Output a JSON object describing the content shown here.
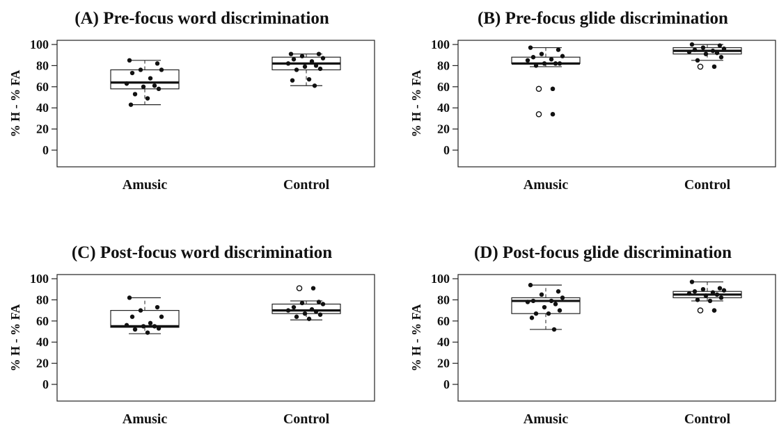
{
  "chart_data": [
    {
      "type": "boxplot",
      "title": "(A) Pre-focus word discrimination",
      "ylabel": "% H - % FA",
      "ylim": [
        -10,
        105
      ],
      "yticks": [
        0,
        20,
        40,
        60,
        80,
        100
      ],
      "categories": [
        "Amusic",
        "Control"
      ],
      "boxes": [
        {
          "q1": 58,
          "median": 64,
          "q3": 76,
          "whisker_low": 43,
          "whisker_high": 85,
          "outliers": [],
          "points": [
            85,
            82,
            76,
            76,
            73,
            68,
            63,
            61,
            60,
            58,
            53,
            49,
            43
          ]
        },
        {
          "q1": 76,
          "median": 82,
          "q3": 88,
          "whisker_low": 61,
          "whisker_high": 91,
          "outliers": [],
          "points": [
            91,
            91,
            89,
            87,
            86,
            84,
            82,
            80,
            79,
            77,
            76,
            67,
            66,
            61
          ]
        }
      ]
    },
    {
      "type": "boxplot",
      "title": "(B) Pre-focus glide discrimination",
      "ylabel": "% H - % FA",
      "ylim": [
        -10,
        105
      ],
      "yticks": [
        0,
        20,
        40,
        60,
        80,
        100
      ],
      "categories": [
        "Amusic",
        "Control"
      ],
      "boxes": [
        {
          "q1": 82,
          "median": 82,
          "q3": 88,
          "whisker_low": 79,
          "whisker_high": 97,
          "outliers": [
            58,
            34
          ],
          "points": [
            97,
            95,
            91,
            89,
            88,
            86,
            85,
            82,
            82,
            82,
            80,
            58,
            58,
            34,
            34
          ]
        },
        {
          "q1": 91,
          "median": 94,
          "q3": 97,
          "whisker_low": 85,
          "whisker_high": 100,
          "outliers": [
            79
          ],
          "points": [
            100,
            99,
            97,
            96,
            95,
            94,
            93,
            92,
            91,
            88,
            85,
            79,
            79
          ]
        }
      ]
    },
    {
      "type": "boxplot",
      "title": "(C) Post-focus word discrimination",
      "ylabel": "% H - % FA",
      "ylim": [
        -10,
        105
      ],
      "yticks": [
        0,
        20,
        40,
        60,
        80,
        100
      ],
      "categories": [
        "Amusic",
        "Control"
      ],
      "boxes": [
        {
          "q1": 54,
          "median": 55,
          "q3": 70,
          "whisker_low": 48,
          "whisker_high": 82,
          "outliers": [],
          "points": [
            82,
            73,
            70,
            64,
            64,
            58,
            56,
            55,
            55,
            53,
            52,
            49
          ]
        },
        {
          "q1": 67,
          "median": 70,
          "q3": 76,
          "whisker_low": 61,
          "whisker_high": 79,
          "outliers": [
            91
          ],
          "points": [
            91,
            78,
            77,
            76,
            73,
            71,
            70,
            69,
            67,
            66,
            64,
            62
          ]
        }
      ]
    },
    {
      "type": "boxplot",
      "title": "(D) Post-focus glide discrimination",
      "ylabel": "% H - % FA",
      "ylim": [
        -10,
        105
      ],
      "yticks": [
        0,
        20,
        40,
        60,
        80,
        100
      ],
      "categories": [
        "Amusic",
        "Control"
      ],
      "boxes": [
        {
          "q1": 67,
          "median": 79,
          "q3": 82,
          "whisker_low": 52,
          "whisker_high": 94,
          "outliers": [],
          "points": [
            94,
            88,
            85,
            82,
            79,
            79,
            78,
            76,
            73,
            70,
            67,
            67,
            63,
            52
          ]
        },
        {
          "q1": 82,
          "median": 85,
          "q3": 88,
          "whisker_low": 79,
          "whisker_high": 97,
          "outliers": [
            70
          ],
          "points": [
            97,
            91,
            90,
            89,
            88,
            87,
            86,
            85,
            84,
            82,
            80,
            79,
            70,
            70
          ]
        }
      ]
    }
  ]
}
